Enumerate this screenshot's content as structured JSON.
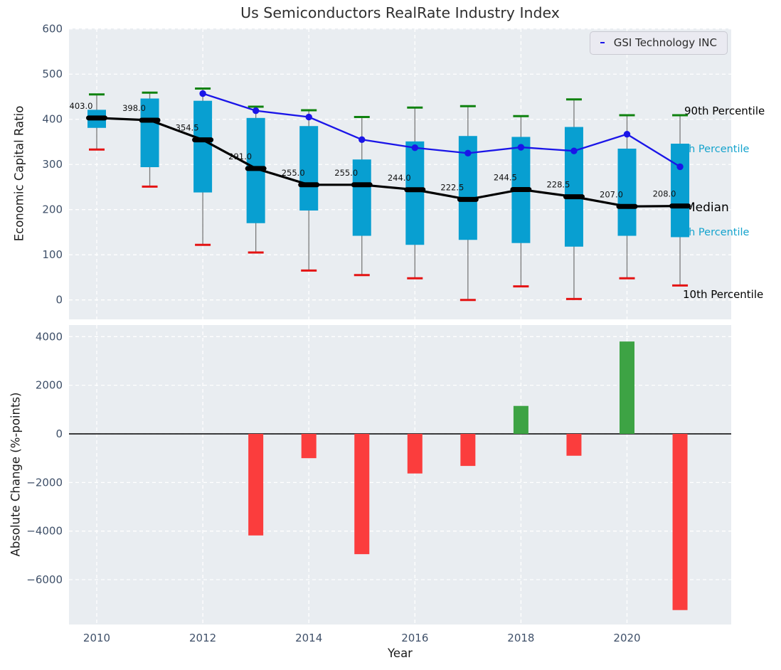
{
  "title": "Us Semiconductors RealRate Industry Index",
  "chart_data": [
    {
      "type": "boxplot",
      "title": "Us Semiconductors RealRate Industry Index",
      "xlabel": "Year",
      "ylabel": "Economic Capital Ratio",
      "grid": true,
      "legend_position": "upper right",
      "x_tick_years": [
        2010,
        2012,
        2014,
        2016,
        2018,
        2020
      ],
      "x_tick_labels": [
        "2010",
        "2012",
        "2014",
        "2016",
        "2018",
        "2020"
      ],
      "y_ticks": [
        0,
        100,
        200,
        300,
        400,
        500,
        600
      ],
      "y_tick_labels": [
        "0",
        "100",
        "200",
        "300",
        "400",
        "500",
        "600"
      ],
      "ylim": [
        -45,
        615
      ],
      "years": [
        2010,
        2011,
        2012,
        2013,
        2014,
        2015,
        2016,
        2017,
        2018,
        2019,
        2020,
        2021
      ],
      "percentile_90": [
        455,
        459,
        468,
        428,
        420,
        405,
        426,
        429,
        407,
        444,
        409,
        409
      ],
      "percentile_75": [
        421,
        446,
        441,
        403,
        385,
        311,
        351,
        363,
        361,
        383,
        335,
        346
      ],
      "median": [
        403.0,
        398.0,
        354.5,
        291.0,
        255.0,
        255.0,
        244.0,
        222.5,
        244.5,
        228.5,
        207.0,
        208.0
      ],
      "median_labels": [
        "403.0",
        "398.0",
        "354.5",
        "291.0",
        "255.0",
        "255.0",
        "244.0",
        "222.5",
        "244.5",
        "228.5",
        "207.0",
        "208.0"
      ],
      "percentile_25": [
        381,
        294,
        238,
        170,
        198,
        142,
        122,
        133,
        126,
        118,
        142,
        139
      ],
      "percentile_10": [
        333,
        251,
        122,
        105,
        65,
        55,
        48,
        0,
        30,
        2,
        48,
        32
      ],
      "series": [
        {
          "name": "GSI Technology INC",
          "color": "#1a15e8",
          "years": [
            2012,
            2013,
            2014,
            2015,
            2016,
            2017,
            2018,
            2019,
            2020,
            2021
          ],
          "values": [
            457,
            419,
            405,
            355,
            337,
            325,
            338,
            330,
            367,
            295
          ]
        }
      ],
      "annotations": [
        {
          "text": "90th Percentile",
          "color": "#000000"
        },
        {
          "text": "75th Percentile",
          "color": "#14a3cd"
        },
        {
          "text": "Median",
          "color": "#000000"
        },
        {
          "text": "25th Percentile",
          "color": "#14a3cd"
        },
        {
          "text": "10th Percentile",
          "color": "#000000"
        }
      ],
      "box_color": "#089fd1",
      "whisker_top_color": "#0f820f",
      "whisker_bottom_color": "#e41313",
      "median_color": "#000000"
    },
    {
      "type": "bar",
      "xlabel": "Year",
      "ylabel": "Absolute Change (%-points)",
      "grid": true,
      "x_tick_years": [
        2010,
        2012,
        2014,
        2016,
        2018,
        2020
      ],
      "x_tick_labels": [
        "2010",
        "2012",
        "2014",
        "2016",
        "2018",
        "2020"
      ],
      "y_ticks": [
        -6000,
        -4000,
        -2000,
        0,
        2000,
        4000
      ],
      "y_tick_labels": [
        "−6000",
        "−4000",
        "−2000",
        "0",
        "2000",
        "4000"
      ],
      "ylim": [
        -7800,
        4450
      ],
      "years": [
        2013,
        2014,
        2015,
        2016,
        2017,
        2018,
        2019,
        2020,
        2021
      ],
      "values": [
        -4180,
        -1000,
        -4950,
        -1630,
        -1320,
        1150,
        -900,
        3800,
        -7250
      ],
      "positive_color": "#3da344",
      "negative_color": "#fb3d3d"
    }
  ]
}
